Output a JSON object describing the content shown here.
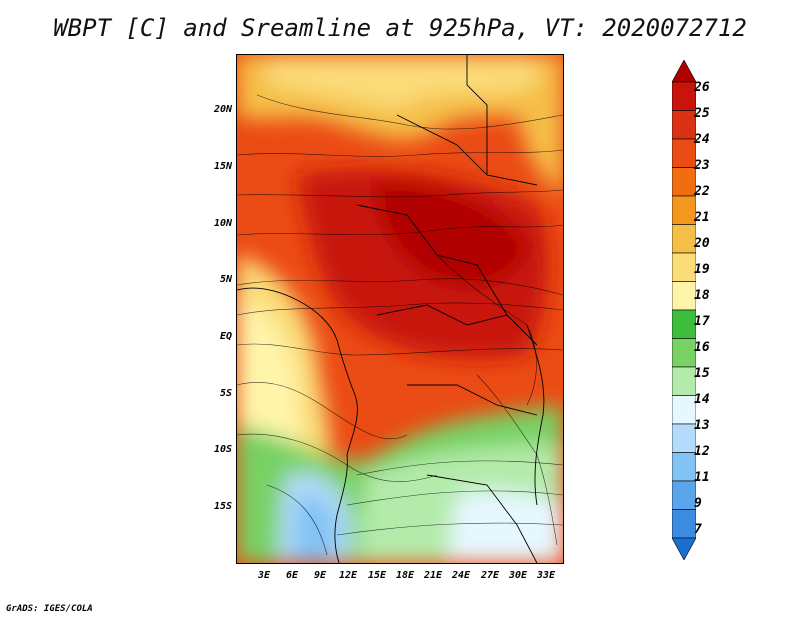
{
  "title": "WBPT [C] and Sreamline at 925hPa, VT: 2020072712",
  "credit": "GrADS: IGES/COLA",
  "map": {
    "lat_labels": [
      "20N",
      "15N",
      "10N",
      "5N",
      "EQ",
      "5S",
      "10S",
      "15S"
    ],
    "lon_labels": [
      "3E",
      "6E",
      "9E",
      "12E",
      "15E",
      "18E",
      "21E",
      "24E",
      "27E",
      "30E",
      "33E"
    ]
  },
  "colorbar": {
    "labels": [
      "26",
      "25",
      "24",
      "23",
      "22",
      "21",
      "20",
      "19",
      "18",
      "17",
      "16",
      "15",
      "14",
      "13",
      "12",
      "11",
      "9",
      "7"
    ],
    "colors": [
      "#b00000",
      "#c8140a",
      "#dc3214",
      "#eb4b14",
      "#f06e0f",
      "#f5961e",
      "#f5be46",
      "#fadc78",
      "#fff5aa",
      "#3cbe3c",
      "#78d264",
      "#b4ebaa",
      "#e6f8ff",
      "#b4dcfa",
      "#82c3f5",
      "#5aa5eb",
      "#3c8ce1",
      "#1e6ed2"
    ]
  }
}
